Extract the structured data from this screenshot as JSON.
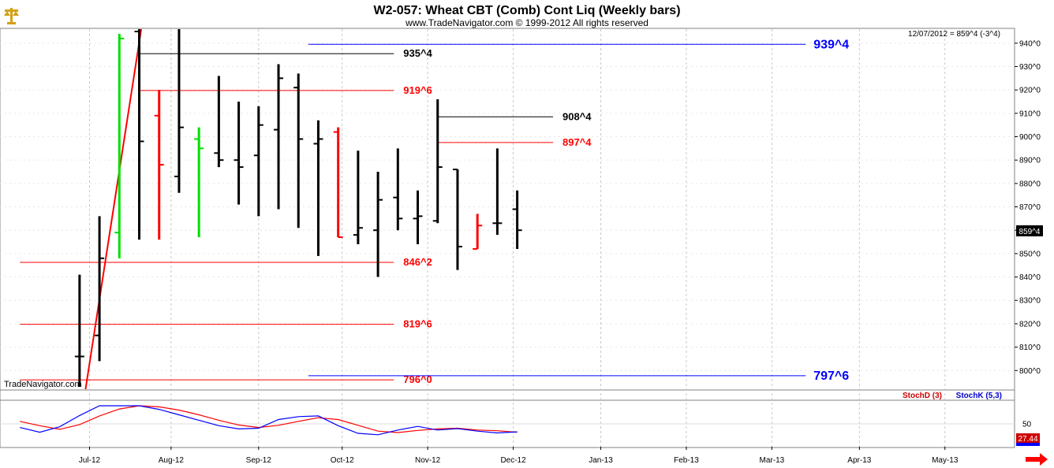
{
  "title": "W2-057:  Wheat CBT (Comb) Cont Liq  (Weekly bars)",
  "subtitle": "www.TradeNavigator.com © 1999-2012 All rights reserved",
  "watermark": "TradeNavigator.com",
  "last_quote": "12/07/2012 = 859^4 (-3^4)",
  "price_badge": "859^4",
  "stoch_badge": "27.44",
  "colors": {
    "red": "#ff0000",
    "black": "#000000",
    "blue": "#0000ff",
    "green": "#00e000",
    "grid": "#c8c8c8"
  },
  "chart_data": {
    "type": "ohlc",
    "y_range": [
      792,
      946
    ],
    "y_ticks": [
      800,
      810,
      820,
      830,
      840,
      850,
      860,
      870,
      880,
      890,
      900,
      910,
      920,
      930,
      940
    ],
    "y_tick_labels": [
      "800^0",
      "810^0",
      "820^0",
      "830^0",
      "840^0",
      "850^0",
      "860^0",
      "870^0",
      "880^0",
      "890^0",
      "900^0",
      "910^0",
      "920^0",
      "930^0",
      "940^0"
    ],
    "x_labels": [
      {
        "label": "Jul-12",
        "w": 2.5
      },
      {
        "label": "Aug-12",
        "w": 6.6
      },
      {
        "label": "Sep-12",
        "w": 11.0
      },
      {
        "label": "Oct-12",
        "w": 15.2
      },
      {
        "label": "Nov-12",
        "w": 19.5
      },
      {
        "label": "Dec-12",
        "w": 23.8
      },
      {
        "label": "Jan-13",
        "w": 28.2
      },
      {
        "label": "Feb-13",
        "w": 32.5
      },
      {
        "label": "Mar-13",
        "w": 36.8
      },
      {
        "label": "Apr-13",
        "w": 41.2
      },
      {
        "label": "May-13",
        "w": 45.5
      }
    ],
    "x_week_range": [
      -2.0,
      49.0
    ],
    "bars": [
      {
        "w": 2,
        "o": 806,
        "h": 841,
        "l": 793,
        "c": 806,
        "color": "black"
      },
      {
        "w": 3,
        "o": 815,
        "h": 866,
        "l": 804,
        "c": 848,
        "color": "black"
      },
      {
        "w": 4,
        "o": 859,
        "h": 944,
        "l": 848,
        "c": 942,
        "color": "green"
      },
      {
        "w": 5,
        "o": 945,
        "h": 946,
        "l": 856,
        "c": 898,
        "color": "black"
      },
      {
        "w": 6,
        "o": 909,
        "h": 920,
        "l": 856,
        "c": 888,
        "color": "red"
      },
      {
        "w": 7,
        "o": 883,
        "h": 946,
        "l": 876,
        "c": 904,
        "color": "black"
      },
      {
        "w": 8,
        "o": 899,
        "h": 904,
        "l": 857,
        "c": 895,
        "color": "green"
      },
      {
        "w": 9,
        "o": 893,
        "h": 926,
        "l": 887,
        "c": 890,
        "color": "black"
      },
      {
        "w": 10,
        "o": 890,
        "h": 915,
        "l": 871,
        "c": 887,
        "color": "black"
      },
      {
        "w": 11,
        "o": 892,
        "h": 913,
        "l": 866,
        "c": 905,
        "color": "black"
      },
      {
        "w": 12,
        "o": 903,
        "h": 931,
        "l": 869,
        "c": 925,
        "color": "black"
      },
      {
        "w": 13,
        "o": 921,
        "h": 927,
        "l": 861,
        "c": 899,
        "color": "black"
      },
      {
        "w": 14,
        "o": 897,
        "h": 907,
        "l": 849,
        "c": 899,
        "color": "black"
      },
      {
        "w": 15,
        "o": 902,
        "h": 904,
        "l": 857,
        "c": 857,
        "color": "red"
      },
      {
        "w": 16,
        "o": 858,
        "h": 894,
        "l": 854,
        "c": 861,
        "color": "black"
      },
      {
        "w": 17,
        "o": 860,
        "h": 885,
        "l": 840,
        "c": 873,
        "color": "black"
      },
      {
        "w": 18,
        "o": 874,
        "h": 895,
        "l": 860,
        "c": 865,
        "color": "black"
      },
      {
        "w": 19,
        "o": 865,
        "h": 877,
        "l": 854,
        "c": 866,
        "color": "black"
      },
      {
        "w": 20,
        "o": 864,
        "h": 916,
        "l": 863,
        "c": 887,
        "color": "black"
      },
      {
        "w": 21,
        "o": 886,
        "h": 886,
        "l": 843,
        "c": 853,
        "color": "black"
      },
      {
        "w": 22,
        "o": 852,
        "h": 867,
        "l": 852,
        "c": 862,
        "color": "red"
      },
      {
        "w": 23,
        "o": 863,
        "h": 895,
        "l": 858,
        "c": 863,
        "color": "black"
      },
      {
        "w": 24,
        "o": 869,
        "h": 877,
        "l": 852,
        "c": 860,
        "color": "black"
      }
    ],
    "levels": [
      {
        "label": "935^4",
        "value": 935.5,
        "color": "black",
        "w0": 5.0,
        "w1": 17.8,
        "lw0": 17.8
      },
      {
        "label": "919^6",
        "value": 919.75,
        "color": "red",
        "w0": 5.0,
        "w1": 17.8,
        "lw0": 17.8
      },
      {
        "label": "908^4",
        "value": 908.5,
        "color": "black",
        "w0": 20.0,
        "w1": 25.8,
        "lw0": 25.8
      },
      {
        "label": "897^4",
        "value": 897.5,
        "color": "red",
        "w0": 20.0,
        "w1": 25.8,
        "lw0": 25.8
      },
      {
        "label": "846^2",
        "value": 846.25,
        "color": "red",
        "w0": -1.0,
        "w1": 17.8,
        "lw0": 17.8
      },
      {
        "label": "819^6",
        "value": 819.75,
        "color": "red",
        "w0": -1.0,
        "w1": 17.8,
        "lw0": 17.8
      },
      {
        "label": "796^0",
        "value": 796.0,
        "color": "red",
        "w0": -1.0,
        "w1": 17.8,
        "lw0": 17.8
      },
      {
        "label": "939^4",
        "value": 939.5,
        "color": "blue",
        "w0": 13.5,
        "w1": 38.5,
        "lw0": 38.5
      },
      {
        "label": "797^6",
        "value": 797.75,
        "color": "blue",
        "w0": 13.5,
        "w1": 38.5,
        "lw0": 38.5
      }
    ],
    "trendline": {
      "w0": 2.3,
      "v0": 792,
      "w1": 5.1,
      "v1": 946,
      "color": "red"
    },
    "stochastic": {
      "y_range": [
        0,
        100
      ],
      "y_ticks": [
        50
      ],
      "legend": [
        {
          "name": "StochD (3)",
          "color": "red"
        },
        {
          "name": "StochK (5,3)",
          "color": "blue"
        }
      ],
      "stochK": [
        [
          -1,
          40
        ],
        [
          0,
          27
        ],
        [
          1,
          42
        ],
        [
          2,
          73
        ],
        [
          3,
          100
        ],
        [
          4,
          100
        ],
        [
          5,
          100
        ],
        [
          6,
          90
        ],
        [
          7,
          75
        ],
        [
          8,
          60
        ],
        [
          9,
          45
        ],
        [
          10,
          36
        ],
        [
          11,
          38
        ],
        [
          12,
          62
        ],
        [
          13,
          70
        ],
        [
          14,
          72
        ],
        [
          15,
          45
        ],
        [
          16,
          24
        ],
        [
          17,
          20
        ],
        [
          18,
          33
        ],
        [
          19,
          43
        ],
        [
          20,
          33
        ],
        [
          21,
          37
        ],
        [
          22,
          30
        ],
        [
          23,
          25
        ],
        [
          24,
          28
        ]
      ],
      "stochD": [
        [
          -1,
          57
        ],
        [
          0,
          45
        ],
        [
          1,
          35
        ],
        [
          2,
          48
        ],
        [
          3,
          72
        ],
        [
          4,
          91
        ],
        [
          5,
          100
        ],
        [
          6,
          97
        ],
        [
          7,
          88
        ],
        [
          8,
          75
        ],
        [
          9,
          60
        ],
        [
          10,
          47
        ],
        [
          11,
          40
        ],
        [
          12,
          46
        ],
        [
          13,
          57
        ],
        [
          14,
          67
        ],
        [
          15,
          62
        ],
        [
          16,
          46
        ],
        [
          17,
          30
        ],
        [
          18,
          26
        ],
        [
          19,
          32
        ],
        [
          20,
          36
        ],
        [
          21,
          38
        ],
        [
          22,
          33
        ],
        [
          23,
          31
        ],
        [
          24,
          27
        ]
      ]
    }
  }
}
